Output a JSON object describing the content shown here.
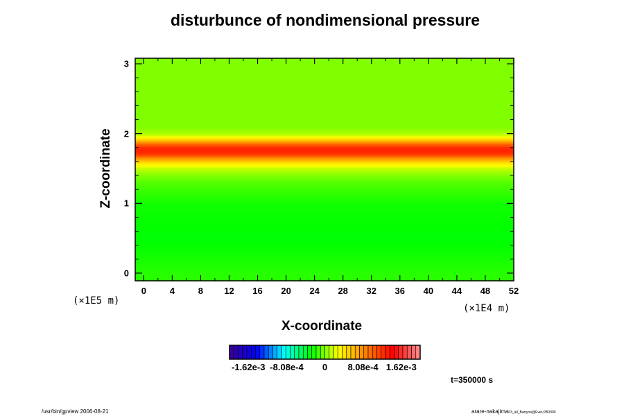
{
  "chart_data": {
    "type": "heatmap",
    "title": "disturbunce of nondimensional pressure",
    "xlabel": "X-coordinate",
    "ylabel": "Z-coordinate",
    "x_unit": "(×1E4 m)",
    "y_unit": "(×1E5 m)",
    "xlim": [
      -1.2,
      52
    ],
    "ylim": [
      -0.11,
      3.08
    ],
    "x_ticks": [
      "0",
      "4",
      "8",
      "12",
      "16",
      "20",
      "24",
      "28",
      "32",
      "36",
      "40",
      "44",
      "48",
      "52"
    ],
    "y_ticks": [
      "0",
      "1",
      "2",
      "3"
    ],
    "z_profile": [
      [
        -0.11,
        -0.0002
      ],
      [
        0.0,
        -0.0002
      ],
      [
        0.5,
        -0.0003
      ],
      [
        1.0,
        -0.00025
      ],
      [
        1.2,
        -0.00015
      ],
      [
        1.3,
        -0.0001
      ],
      [
        1.4,
        0.0
      ],
      [
        1.5,
        0.00015
      ],
      [
        1.55,
        0.0003
      ],
      [
        1.6,
        0.0005
      ],
      [
        1.65,
        0.0008
      ],
      [
        1.7,
        0.00115
      ],
      [
        1.75,
        0.0013
      ],
      [
        1.8,
        0.00125
      ],
      [
        1.85,
        0.001
      ],
      [
        1.9,
        0.0006
      ],
      [
        1.95,
        0.0003
      ],
      [
        2.0,
        0.0001
      ],
      [
        2.1,
        0.0
      ],
      [
        3.08,
        0.0
      ]
    ],
    "colorbar": {
      "range": [
        -0.00202,
        0.00202
      ],
      "tick_values": [
        -0.00162,
        -0.000808,
        0,
        0.000808,
        0.00162
      ],
      "tick_labels": [
        "-1.62e-3",
        "-8.08e-4",
        "0",
        "8.08e-4",
        "1.62e-3"
      ],
      "colormap": [
        "#3a0090",
        "#0000ff",
        "#00ffff",
        "#00ff00",
        "#ffff00",
        "#ff8000",
        "#ff0000",
        "#ff9090"
      ]
    },
    "annotation": "t=350000 s"
  },
  "footer": {
    "left": "/usr/bin/gpview 2006-08-21",
    "right_main": "arare-nakajima",
    "right_sub": "03_all_Barryno@Ever,t350000"
  }
}
